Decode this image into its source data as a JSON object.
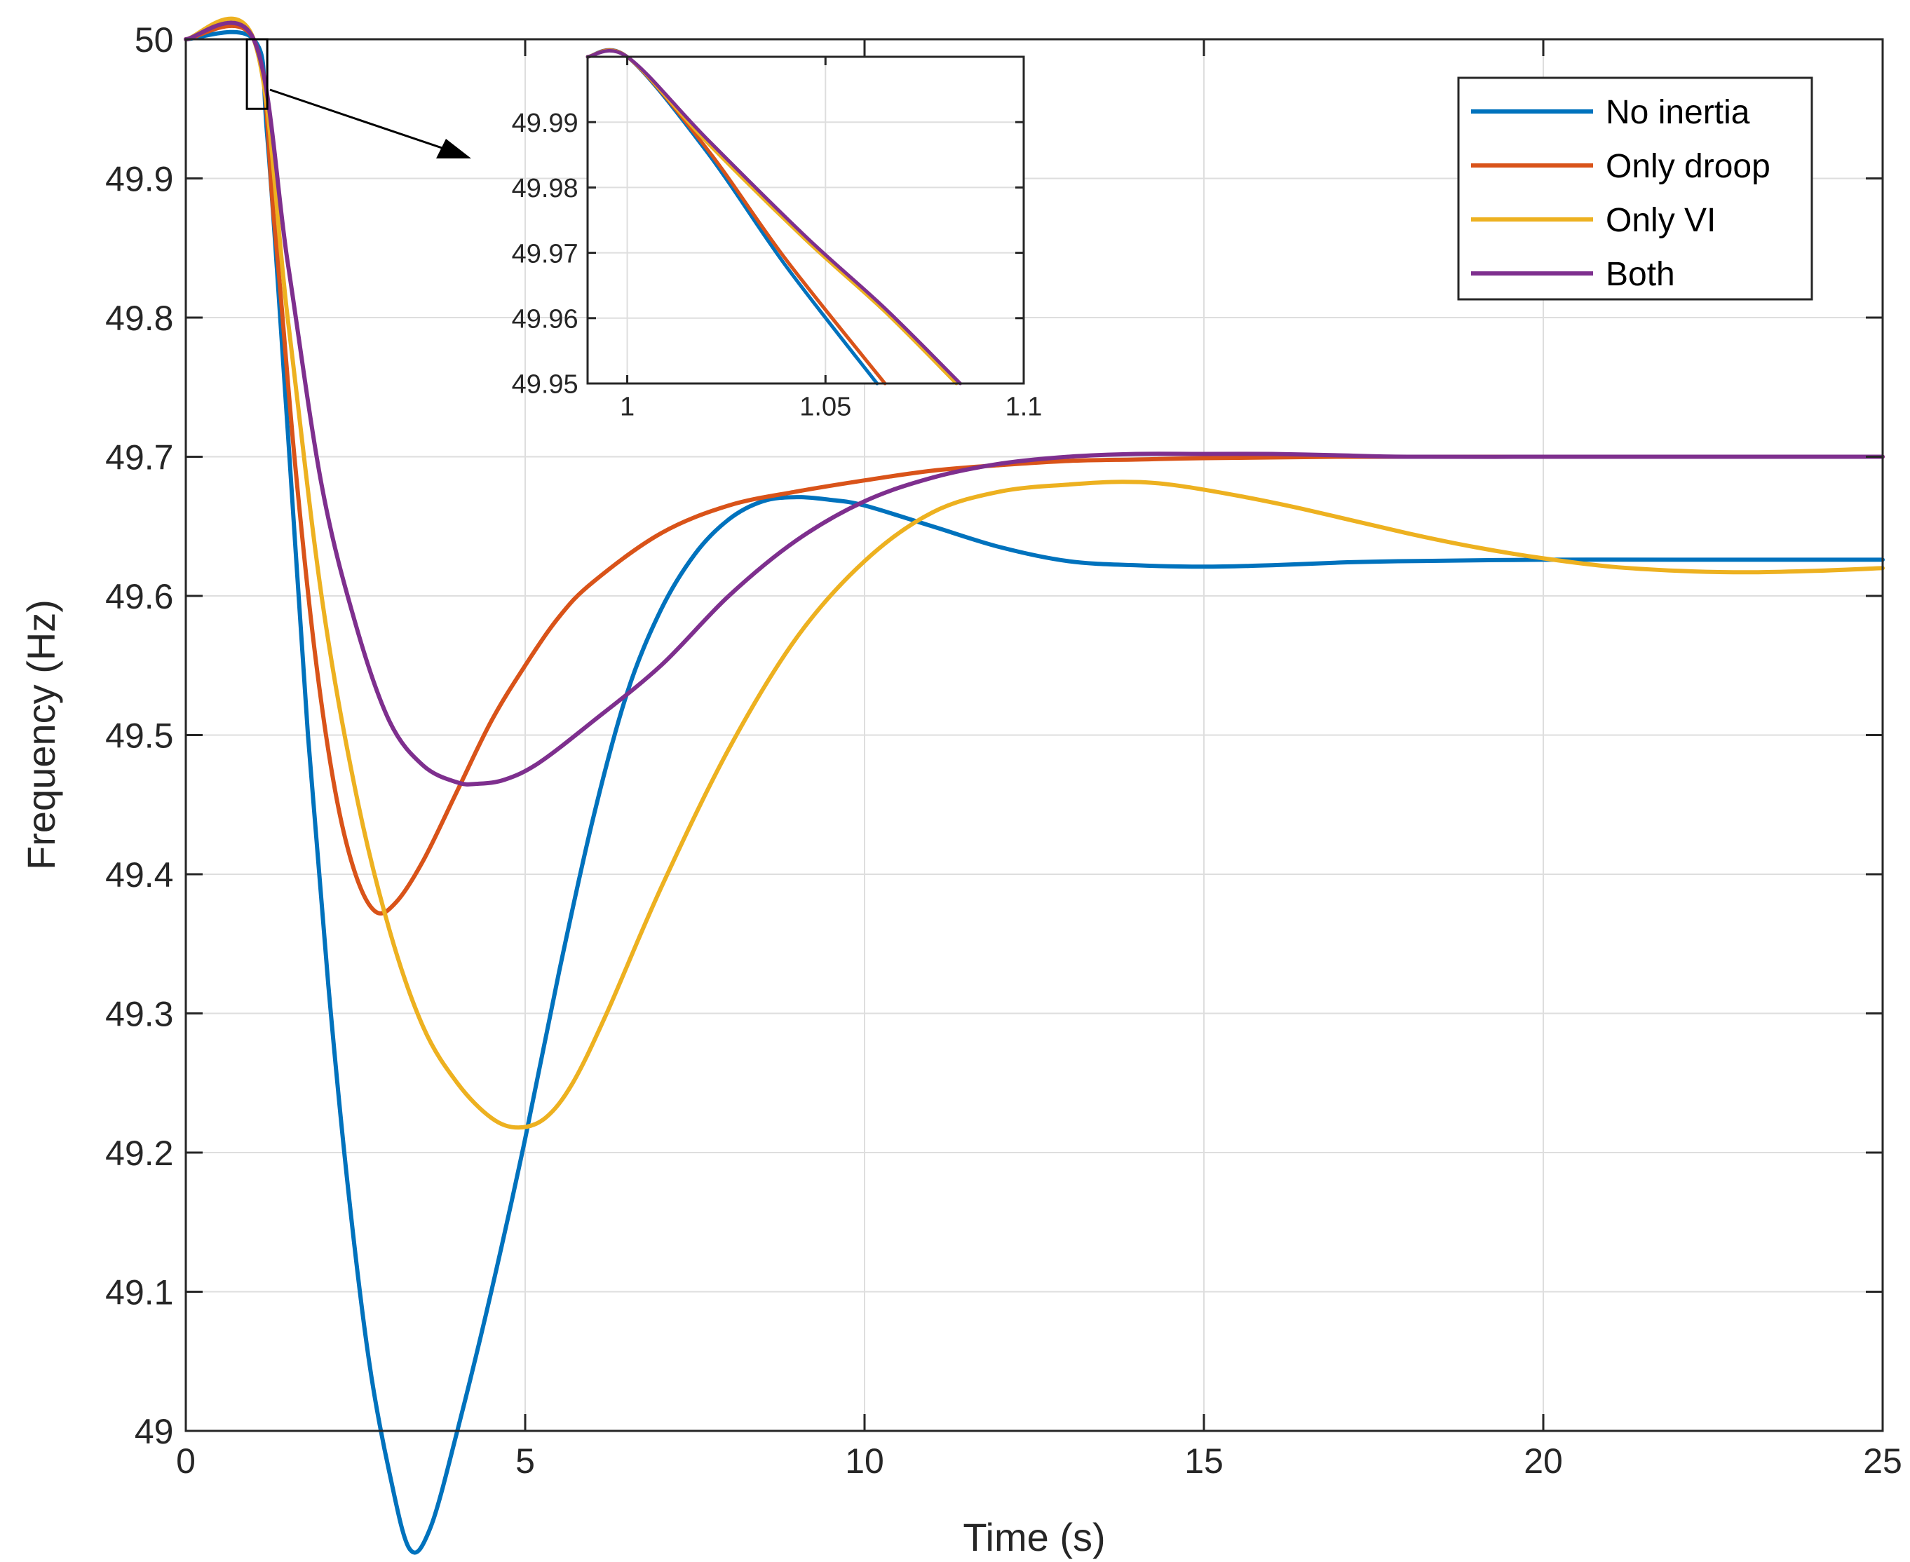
{
  "chart_data": {
    "type": "line",
    "title": "",
    "xlabel": "Time (s)",
    "ylabel": "Frequency (Hz)",
    "xlim": [
      0,
      25
    ],
    "ylim": [
      49,
      50
    ],
    "xticks": [
      0,
      5,
      10,
      15,
      20,
      25
    ],
    "xtick_labels": [
      "0",
      "5",
      "10",
      "15",
      "20",
      "25"
    ],
    "yticks": [
      49,
      49.1,
      49.2,
      49.3,
      49.4,
      49.5,
      49.6,
      49.7,
      49.8,
      49.9,
      50
    ],
    "ytick_labels": [
      "49",
      "49.1",
      "49.2",
      "49.3",
      "49.4",
      "49.5",
      "49.6",
      "49.7",
      "49.8",
      "49.9",
      "50"
    ],
    "grid": true,
    "legend_position": "top-right",
    "series": [
      {
        "name": "No inertia",
        "color": "#0072BD",
        "x": [
          0,
          1,
          1.2,
          1.5,
          1.8,
          2.1,
          2.4,
          2.7,
          3.0,
          3.3,
          3.6,
          4.0,
          4.5,
          5.0,
          5.5,
          6.0,
          6.5,
          7.0,
          7.5,
          8.0,
          8.5,
          9.0,
          9.5,
          10.0,
          11.0,
          12.0,
          13.0,
          14.0,
          15.0,
          16.0,
          17.0,
          18.0,
          20.0,
          22.0,
          25.0
        ],
        "values": [
          50,
          50,
          49.93,
          49.72,
          49.5,
          49.32,
          49.17,
          49.05,
          48.97,
          48.915,
          48.93,
          49.0,
          49.1,
          49.21,
          49.33,
          49.44,
          49.53,
          49.59,
          49.63,
          49.655,
          49.668,
          49.671,
          49.669,
          49.665,
          49.65,
          49.635,
          49.625,
          49.622,
          49.621,
          49.622,
          49.624,
          49.625,
          49.626,
          49.626,
          49.626
        ]
      },
      {
        "name": "Only droop",
        "color": "#D95319",
        "x": [
          0,
          1,
          1.3,
          1.6,
          1.9,
          2.2,
          2.5,
          2.8,
          3.1,
          3.5,
          4.0,
          4.5,
          5.0,
          5.5,
          6.0,
          7.0,
          8.0,
          9.0,
          10.0,
          11.0,
          12.0,
          13.0,
          14.0,
          15.0,
          17.0,
          20.0,
          25.0
        ],
        "values": [
          50,
          50,
          49.87,
          49.7,
          49.56,
          49.46,
          49.4,
          49.373,
          49.38,
          49.41,
          49.46,
          49.51,
          49.55,
          49.585,
          49.61,
          49.645,
          49.665,
          49.675,
          49.683,
          49.69,
          49.694,
          49.697,
          49.698,
          49.699,
          49.7,
          49.7,
          49.7
        ]
      },
      {
        "name": "Only VI",
        "color": "#EDB120",
        "x": [
          0,
          1,
          1.5,
          2.0,
          2.5,
          3.0,
          3.5,
          4.0,
          4.5,
          4.9,
          5.3,
          5.7,
          6.2,
          7.0,
          8.0,
          9.0,
          10.0,
          11.0,
          12.0,
          13.0,
          13.8,
          14.5,
          15.5,
          16.5,
          18.0,
          19.0,
          20.0,
          21.0,
          22.0,
          23.0,
          24.0,
          25.0
        ],
        "values": [
          50,
          50,
          49.8,
          49.6,
          49.46,
          49.36,
          49.29,
          49.25,
          49.225,
          49.218,
          49.225,
          49.25,
          49.3,
          49.39,
          49.49,
          49.57,
          49.625,
          49.66,
          49.675,
          49.68,
          49.682,
          49.68,
          49.672,
          49.662,
          49.645,
          49.635,
          49.627,
          49.621,
          49.618,
          49.617,
          49.618,
          49.62
        ]
      },
      {
        "name": "Both",
        "color": "#7E2F8E",
        "x": [
          0,
          1,
          1.5,
          2.0,
          2.5,
          3.0,
          3.5,
          4.0,
          4.3,
          4.7,
          5.2,
          6.0,
          7.0,
          8.0,
          9.0,
          10.0,
          11.0,
          12.0,
          13.0,
          14.0,
          15.0,
          16.0,
          17.0,
          18.0,
          20.0,
          22.0,
          25.0
        ],
        "values": [
          50,
          50,
          49.84,
          49.68,
          49.58,
          49.51,
          49.478,
          49.466,
          49.465,
          49.468,
          49.48,
          49.51,
          49.55,
          49.6,
          49.64,
          49.668,
          49.685,
          49.695,
          49.7,
          49.702,
          49.702,
          49.702,
          49.701,
          49.7,
          49.7,
          49.7,
          49.7
        ]
      }
    ],
    "inset": {
      "xlim": [
        0.99,
        1.1
      ],
      "ylim": [
        49.95,
        50
      ],
      "xticks": [
        1,
        1.05,
        1.1
      ],
      "xtick_labels": [
        "1",
        "1.05",
        "1.1"
      ],
      "yticks": [
        49.95,
        49.96,
        49.97,
        49.98,
        49.99
      ],
      "ytick_labels": [
        "49.95",
        "49.96",
        "49.97",
        "49.98",
        "49.99"
      ],
      "grid": true,
      "zoom_region": {
        "x": [
          0.9,
          1.2
        ],
        "y": [
          49.95,
          50
        ]
      },
      "series": [
        {
          "name": "No inertia",
          "color": "#0072BD",
          "x": [
            0.99,
            1.0,
            1.02,
            1.04,
            1.063
          ],
          "values": [
            50,
            50,
            49.9855,
            49.968,
            49.95
          ]
        },
        {
          "name": "Only droop",
          "color": "#D95319",
          "x": [
            0.99,
            1.0,
            1.02,
            1.04,
            1.065
          ],
          "values": [
            50,
            50,
            49.986,
            49.969,
            49.95
          ]
        },
        {
          "name": "Only VI",
          "color": "#EDB120",
          "x": [
            0.99,
            1.0,
            1.02,
            1.045,
            1.065,
            1.083
          ],
          "values": [
            50,
            50,
            49.987,
            49.972,
            49.961,
            49.95
          ]
        },
        {
          "name": "Both",
          "color": "#7E2F8E",
          "x": [
            0.99,
            1.0,
            1.02,
            1.045,
            1.065,
            1.084
          ],
          "values": [
            50,
            50,
            49.9875,
            49.9725,
            49.9615,
            49.95
          ]
        }
      ]
    }
  }
}
